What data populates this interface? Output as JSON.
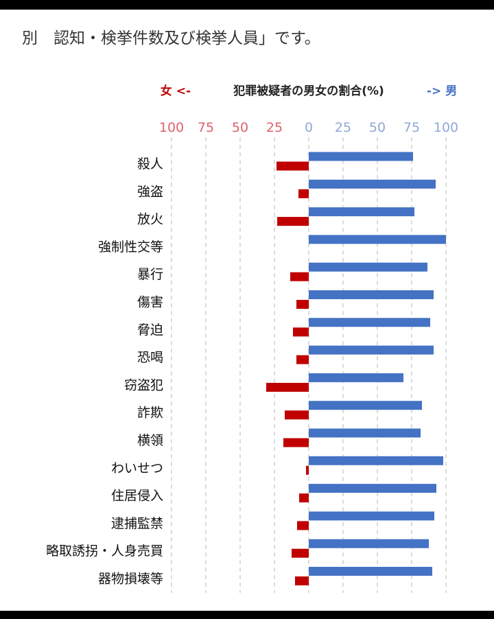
{
  "caption": "別　認知・検挙件数及び検挙人員」です。",
  "chart_data": {
    "type": "bar",
    "orientation": "horizontal-diverging",
    "title": "犯罪被疑者の男女の割合(%)",
    "left_label": "女 <-",
    "right_label": "-> 男",
    "left_ticks": [
      "100",
      "75",
      "50",
      "25"
    ],
    "right_ticks": [
      "0",
      "25",
      "50",
      "75",
      "100"
    ],
    "xlim": [
      -100,
      100
    ],
    "categories": [
      "殺人",
      "強盗",
      "放火",
      "強制性交等",
      "暴行",
      "傷害",
      "脅迫",
      "恐喝",
      "窃盗犯",
      "詐欺",
      "横領",
      "わいせつ",
      "住居侵入",
      "逮捕監禁",
      "略取誘拐・人身売買",
      "器物損壊等"
    ],
    "series": [
      {
        "name": "女",
        "color": "#c00000",
        "values": [
          23.5,
          7.5,
          23,
          0,
          13.5,
          9,
          11.5,
          9,
          31,
          17.5,
          18.5,
          2,
          7,
          8.5,
          12.5,
          10
        ]
      },
      {
        "name": "男",
        "color": "#4472c4",
        "values": [
          76,
          92.5,
          77,
          100,
          86.5,
          91,
          88.5,
          91,
          69,
          82.5,
          81.5,
          98,
          93,
          91.5,
          87.5,
          90
        ]
      }
    ],
    "colors": {
      "female": "#c00000",
      "male": "#4472c4",
      "grid": "#c8c8c8"
    }
  }
}
